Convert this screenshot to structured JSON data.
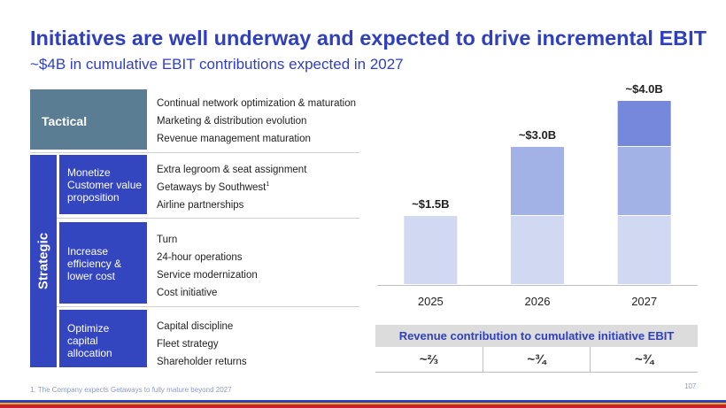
{
  "title": "Initiatives are well underway and expected to drive incremental EBIT",
  "subtitle": "~$4B in cumulative EBIT contributions expected in 2027",
  "tactical": {
    "label": "Tactical",
    "items": [
      "Continual network optimization & maturation",
      "Marketing & distribution evolution",
      "Revenue management maturation"
    ]
  },
  "strategic": {
    "label": "Strategic",
    "groups": [
      {
        "label_lines": [
          "Monetize",
          "Customer value",
          "proposition"
        ],
        "items": [
          "Extra legroom & seat assignment",
          "Getaways by Southwest",
          "Airline partnerships"
        ],
        "footnote_ref": "1"
      },
      {
        "label_lines": [
          "Increase",
          "efficiency &",
          "lower cost"
        ],
        "items": [
          "Turn",
          "24-hour operations",
          "Service modernization",
          "Cost initiative"
        ]
      },
      {
        "label_lines": [
          "Optimize",
          "capital",
          "allocation"
        ],
        "items": [
          "Capital discipline",
          "Fleet strategy",
          "Shareholder returns"
        ]
      }
    ]
  },
  "chart_data": {
    "type": "bar",
    "stacked": true,
    "categories": [
      "2025",
      "2026",
      "2027"
    ],
    "series": [
      {
        "values": [
          1.5,
          1.5,
          1.5
        ]
      },
      {
        "values": [
          0,
          1.5,
          1.5
        ]
      },
      {
        "values": [
          0,
          0,
          1.0
        ]
      }
    ],
    "data_labels": [
      "~$1.5B",
      "~$3.0B",
      "~$4.0B"
    ],
    "ylim": [
      0,
      4.0
    ],
    "grid": false
  },
  "colors": {
    "series": [
      "#d0d8f2",
      "#a3b2e6",
      "#7588dc"
    ],
    "accent": "#2f40bf",
    "tactical": "#5b7d93",
    "strategic": "#3346bf"
  },
  "revenue_table": {
    "header": "Revenue contribution to cumulative initiative EBIT",
    "values": [
      "~⅔",
      "~¾",
      "~¾"
    ]
  },
  "footnote": "1. The Company expects Getaways to fully mature beyond 2027",
  "page_number": "107"
}
